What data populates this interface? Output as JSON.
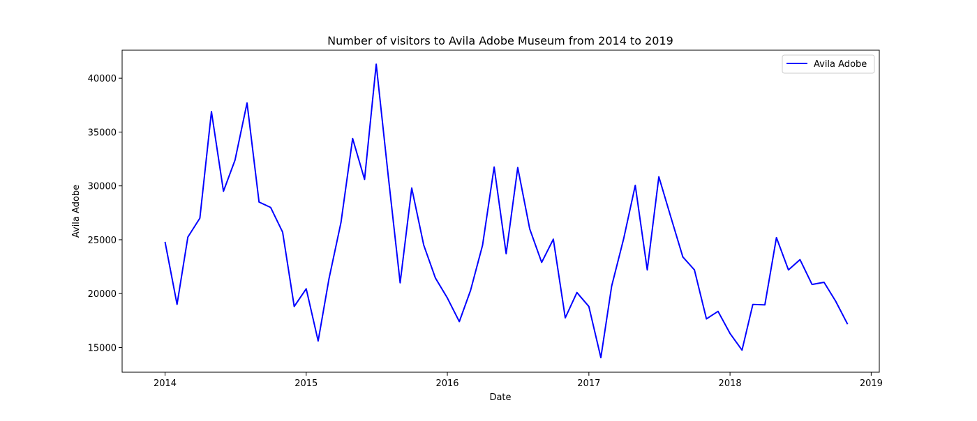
{
  "chart_data": {
    "type": "line",
    "title": "Number of visitors to Avila Adobe Museum from 2014 to 2019",
    "xlabel": "Date",
    "ylabel": "Avila Adobe",
    "x_ticks": [
      "2014",
      "2015",
      "2016",
      "2017",
      "2018",
      "2019"
    ],
    "y_ticks": [
      15000,
      20000,
      25000,
      30000,
      35000,
      40000
    ],
    "xlim": [
      "2013-09-12",
      "2019-01-22"
    ],
    "ylim": [
      12700,
      42600
    ],
    "grid": false,
    "legend": {
      "position": "top-right",
      "entries": [
        "Avila Adobe"
      ]
    },
    "colors": {
      "series": "#0000ff"
    },
    "series": [
      {
        "name": "Avila Adobe",
        "x": [
          "2014-01-01",
          "2014-02-01",
          "2014-03-01",
          "2014-04-01",
          "2014-05-01",
          "2014-06-01",
          "2014-07-01",
          "2014-08-01",
          "2014-09-01",
          "2014-10-01",
          "2014-11-01",
          "2014-12-01",
          "2015-01-01",
          "2015-02-01",
          "2015-03-01",
          "2015-04-01",
          "2015-05-01",
          "2015-06-01",
          "2015-07-01",
          "2015-08-01",
          "2015-09-01",
          "2015-10-01",
          "2015-11-01",
          "2015-12-01",
          "2016-01-01",
          "2016-02-01",
          "2016-03-01",
          "2016-04-01",
          "2016-05-01",
          "2016-06-01",
          "2016-07-01",
          "2016-08-01",
          "2016-09-01",
          "2016-10-01",
          "2016-11-01",
          "2016-12-01",
          "2017-01-01",
          "2017-02-01",
          "2017-03-01",
          "2017-04-01",
          "2017-05-01",
          "2017-06-01",
          "2017-07-01",
          "2017-08-01",
          "2017-09-01",
          "2017-10-01",
          "2017-11-01",
          "2017-12-01",
          "2018-01-01",
          "2018-02-01",
          "2018-03-01",
          "2018-04-01",
          "2018-05-01",
          "2018-06-01",
          "2018-07-01",
          "2018-08-01",
          "2018-09-01",
          "2018-10-01",
          "2018-11-01"
        ],
        "values": [
          24800,
          19000,
          25250,
          27000,
          36900,
          29500,
          32400,
          37700,
          28500,
          28000,
          25700,
          18800,
          20450,
          15600,
          21400,
          26600,
          34400,
          30600,
          41300,
          31000,
          21000,
          29800,
          24500,
          21450,
          19600,
          17400,
          20300,
          24500,
          31750,
          23700,
          31700,
          26000,
          22900,
          25050,
          17750,
          20100,
          18800,
          14050,
          20700,
          25100,
          30050,
          22200,
          30850,
          27100,
          23400,
          22200,
          17650,
          18350,
          16300,
          14750,
          19000,
          18950,
          25200,
          22200,
          23150,
          20850,
          21050,
          19300,
          17150
        ]
      }
    ]
  }
}
